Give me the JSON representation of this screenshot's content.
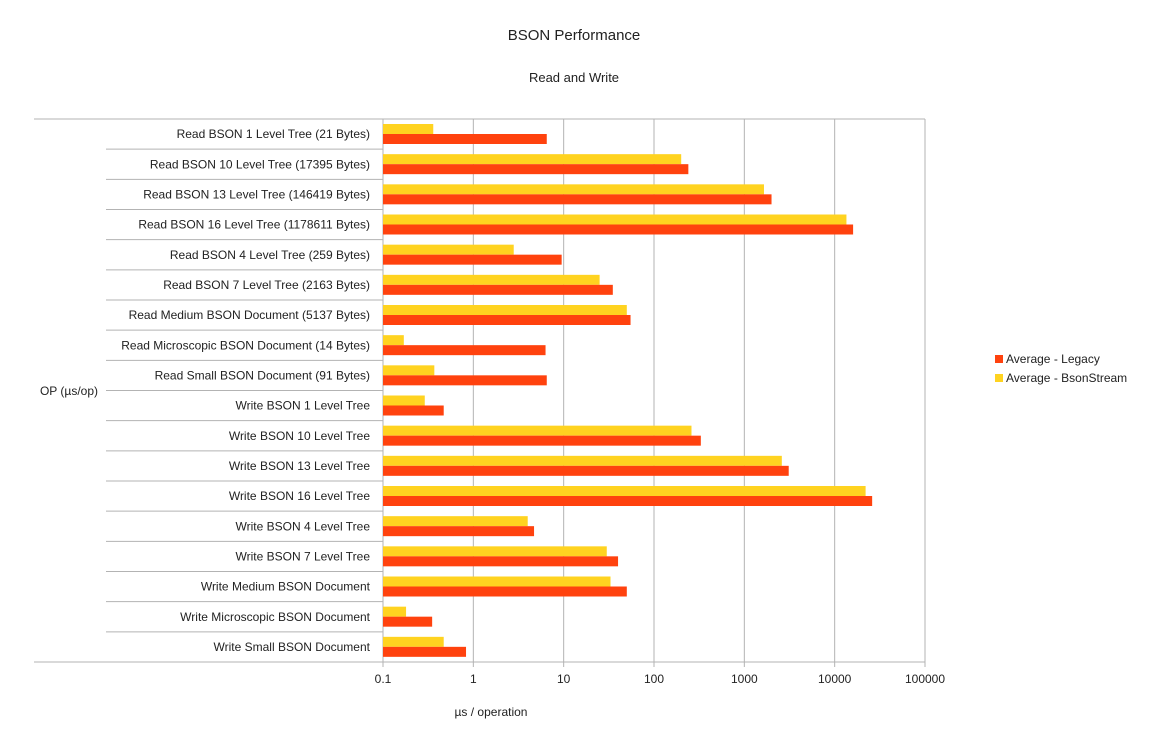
{
  "chart_data": {
    "type": "bar",
    "orientation": "horizontal",
    "title": "BSON Performance",
    "subtitle": "Read and Write",
    "xlabel": "µs / operation",
    "ylabel": "OP (µs/op)",
    "x_scale": "log",
    "xlim": [
      0.1,
      100000
    ],
    "x_ticks": [
      "0.1",
      "1",
      "10",
      "100",
      "1000",
      "10000",
      "100000"
    ],
    "grid": "vertical major gridlines",
    "legend_position": "right",
    "categories": [
      "Read BSON 1 Level Tree (21 Bytes)",
      "Read BSON 10 Level Tree (17395 Bytes)",
      "Read BSON 13 Level Tree (146419 Bytes)",
      "Read BSON 16 Level Tree (1178611 Bytes)",
      "Read BSON 4 Level Tree (259 Bytes)",
      "Read BSON 7 Level Tree (2163 Bytes)",
      "Read Medium BSON Document (5137 Bytes)",
      "Read Microscopic BSON Document (14 Bytes)",
      "Read Small BSON Document (91 Bytes)",
      "Write BSON 1 Level Tree",
      "Write BSON 10 Level Tree",
      "Write BSON 13 Level Tree",
      "Write BSON 16 Level Tree",
      "Write BSON 4 Level Tree",
      "Write BSON 7 Level Tree",
      "Write Medium BSON Document",
      "Write Microscopic BSON Document",
      "Write Small BSON Document"
    ],
    "series": [
      {
        "name": "Average - Legacy",
        "color": "#ff420e",
        "values": [
          6.5,
          240,
          2000,
          16000,
          9.5,
          35,
          55,
          6.3,
          6.5,
          0.47,
          330,
          3100,
          26000,
          4.7,
          40,
          50,
          0.35,
          0.83
        ]
      },
      {
        "name": "Average - BsonStream",
        "color": "#ffd320",
        "values": [
          0.36,
          200,
          1650,
          13500,
          2.8,
          25,
          50,
          0.17,
          0.37,
          0.29,
          260,
          2600,
          22000,
          4.0,
          30,
          33,
          0.18,
          0.47
        ]
      }
    ]
  }
}
